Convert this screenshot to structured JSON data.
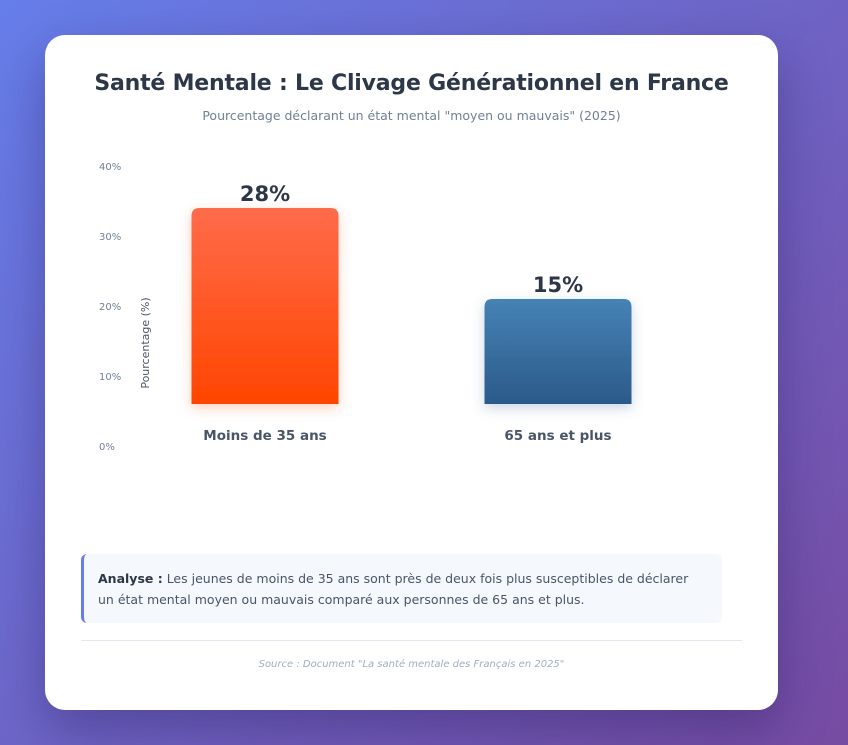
{
  "title": "Santé Mentale : Le Clivage Générationnel en France",
  "subtitle": "Pourcentage déclarant un état mental \"moyen ou mauvais\" (2025)",
  "colors": {
    "bar_young_top": "#ff6b4a",
    "bar_young_bottom": "#ff4500",
    "bar_old_top": "#4682b4",
    "bar_old_bottom": "#2b5a8a",
    "accent": "#667eea"
  },
  "chart_data": {
    "type": "bar",
    "title": "Santé Mentale : Le Clivage Générationnel en France",
    "xlabel": "",
    "ylabel": "Pourcentage (%)",
    "ylim": [
      0,
      40
    ],
    "yticks": [
      "0%",
      "10%",
      "20%",
      "30%",
      "40%"
    ],
    "categories": [
      "Moins de 35 ans",
      "65 ans et plus"
    ],
    "values": [
      28,
      15
    ],
    "value_labels": [
      "28%",
      "15%"
    ]
  },
  "analysis": {
    "label": "Analyse :",
    "text": " Les jeunes de moins de 35 ans sont près de deux fois plus susceptibles de déclarer un état mental moyen ou mauvais comparé aux personnes de 65 ans et plus."
  },
  "source": "Source : Document \"La santé mentale des Français en 2025\""
}
